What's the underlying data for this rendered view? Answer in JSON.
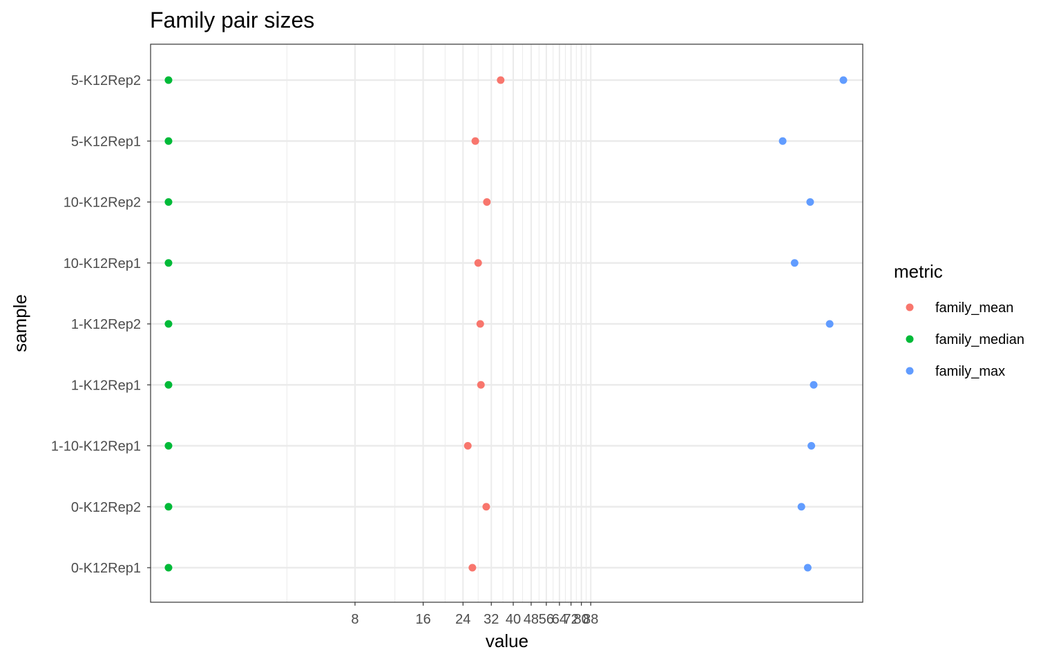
{
  "chart_data": {
    "type": "scatter",
    "title": "Family pair sizes",
    "xlabel": "value",
    "ylabel": "sample",
    "x_scale": "log",
    "grid": true,
    "y_categories": [
      "0-K12Rep1",
      "0-K12Rep2",
      "1-10-K12Rep1",
      "1-K12Rep1",
      "1-K12Rep2",
      "10-K12Rep1",
      "10-K12Rep2",
      "5-K12Rep1",
      "5-K12Rep2"
    ],
    "x_ticks": [
      8,
      16,
      24,
      32,
      40,
      48,
      56,
      64,
      72,
      80,
      88
    ],
    "x_tick_labels": [
      "8",
      "16",
      "24",
      "32",
      "40",
      "48",
      "56",
      "64",
      "72",
      "80",
      "88"
    ],
    "x_visible_range": [
      1.0,
      1400
    ],
    "legend": {
      "title": "metric",
      "position": "right"
    },
    "series": [
      {
        "name": "family_mean",
        "color": "#F8766D",
        "values": [
          26.4,
          30.4,
          25.2,
          28.8,
          28.6,
          28.0,
          30.6,
          27.2,
          35.2
        ]
      },
      {
        "name": "family_median",
        "color": "#00BA38",
        "values": [
          1.2,
          1.2,
          1.2,
          1.2,
          1.2,
          1.2,
          1.2,
          1.2,
          1.2
        ]
      },
      {
        "name": "family_max",
        "color": "#619CFF",
        "values": [
          800,
          750,
          830,
          850,
          1000,
          700,
          820,
          620,
          1150
        ]
      }
    ]
  }
}
